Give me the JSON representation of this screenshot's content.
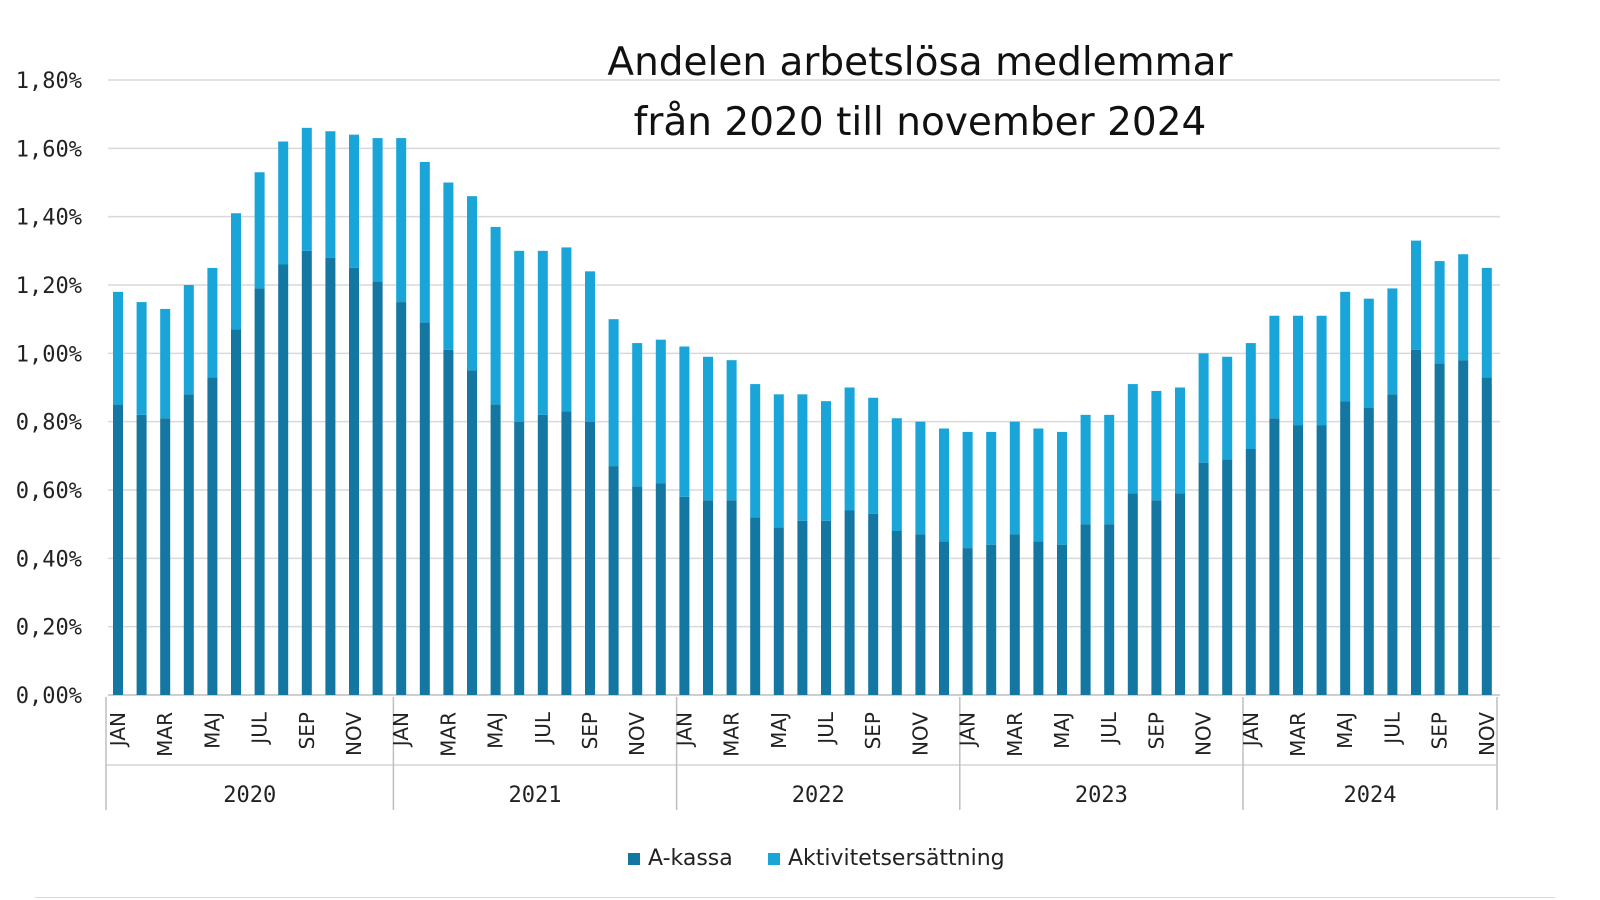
{
  "chart_data": {
    "type": "bar",
    "stacked": true,
    "title": "Andelen arbetslösa medlemmar\nfrån 2020 till november 2024",
    "title_lines": [
      "Andelen arbetslösa medlemmar",
      "från 2020 till november 2024"
    ],
    "y_ticks": [
      "0,00%",
      "0,20%",
      "0,40%",
      "0,60%",
      "0,80%",
      "1,00%",
      "1,20%",
      "1,40%",
      "1,60%",
      "1,80%"
    ],
    "ylim": [
      0,
      1.8
    ],
    "unit": "%",
    "grid": true,
    "legend_position": "bottom",
    "month_labels": [
      "JAN",
      "",
      "MAR",
      "",
      "MAJ",
      "",
      "JUL",
      "",
      "SEP",
      "",
      "NOV",
      ""
    ],
    "years": [
      "2020",
      "2021",
      "2022",
      "2023",
      "2024"
    ],
    "months_per_year": [
      12,
      12,
      12,
      12,
      11
    ],
    "colors": {
      "akassa": "#1377a1",
      "aktivitet": "#19a5d8",
      "grid": "#d9d9d9",
      "axis": "#bfbfbf",
      "text": "#222222"
    },
    "series": [
      {
        "name": "A-kassa",
        "values": [
          0.85,
          0.82,
          0.81,
          0.88,
          0.93,
          1.07,
          1.19,
          1.26,
          1.3,
          1.28,
          1.25,
          1.21,
          1.15,
          1.09,
          1.01,
          0.95,
          0.85,
          0.8,
          0.82,
          0.83,
          0.8,
          0.67,
          0.61,
          0.62,
          0.58,
          0.57,
          0.57,
          0.52,
          0.49,
          0.51,
          0.51,
          0.54,
          0.53,
          0.48,
          0.47,
          0.45,
          0.43,
          0.44,
          0.47,
          0.45,
          0.44,
          0.5,
          0.5,
          0.59,
          0.57,
          0.59,
          0.68,
          0.69,
          0.72,
          0.81,
          0.79,
          0.79,
          0.86,
          0.84,
          0.88,
          1.01,
          0.97,
          0.98,
          0.93
        ]
      },
      {
        "name": "Aktivitetsersättning",
        "values": [
          0.33,
          0.33,
          0.32,
          0.32,
          0.32,
          0.34,
          0.34,
          0.36,
          0.36,
          0.37,
          0.39,
          0.42,
          0.48,
          0.47,
          0.49,
          0.51,
          0.52,
          0.5,
          0.48,
          0.48,
          0.44,
          0.43,
          0.42,
          0.42,
          0.44,
          0.42,
          0.41,
          0.39,
          0.39,
          0.37,
          0.35,
          0.36,
          0.34,
          0.33,
          0.33,
          0.33,
          0.34,
          0.33,
          0.33,
          0.33,
          0.33,
          0.32,
          0.32,
          0.32,
          0.32,
          0.31,
          0.32,
          0.3,
          0.31,
          0.3,
          0.32,
          0.32,
          0.32,
          0.32,
          0.31,
          0.32,
          0.3,
          0.31,
          0.32
        ]
      }
    ]
  },
  "legend": {
    "akassa_label": "A-kassa",
    "aktivitet_label": "Aktivitetsersättning"
  }
}
